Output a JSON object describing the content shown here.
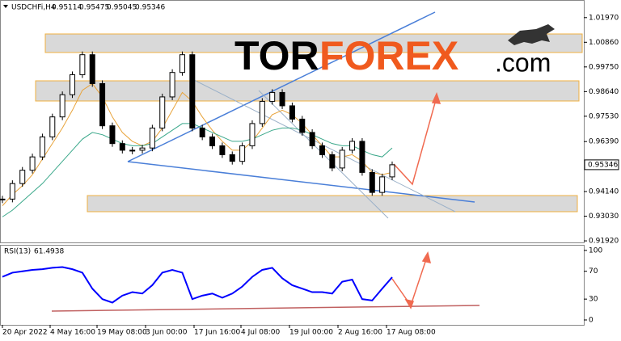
{
  "chart_data": [
    {
      "type": "candlestick",
      "symbol": "USDCHFi,H4",
      "ohlc": [
        0.95114,
        0.95475,
        0.95045,
        0.95346
      ],
      "ylim": [
        0.9185,
        1.0269
      ],
      "yticks": [
        {
          "value": 1.0197,
          "label": "1.01970"
        },
        {
          "value": 1.0086,
          "label": "1.00860"
        },
        {
          "value": 0.9975,
          "label": "0.99750"
        },
        {
          "value": 0.9864,
          "label": "0.98640"
        },
        {
          "value": 0.9753,
          "label": "0.97530"
        },
        {
          "value": 0.9639,
          "label": "0.96390"
        },
        {
          "value": 0.9414,
          "label": "0.94140"
        },
        {
          "value": 0.9303,
          "label": "0.93030"
        },
        {
          "value": 0.9192,
          "label": "0.91920"
        }
      ],
      "series": [
        {
          "color": "#000000",
          "values": [
            0.938,
            0.945,
            0.951,
            0.957,
            0.966,
            0.975,
            0.985,
            0.994,
            1.003,
            0.99,
            0.971,
            0.963,
            0.96,
            0.96,
            0.961,
            0.97,
            0.984,
            0.995,
            1.003,
            0.97,
            0.966,
            0.962,
            0.958,
            0.955,
            0.962,
            0.972,
            0.982,
            0.986,
            0.98,
            0.974,
            0.968,
            0.962,
            0.958,
            0.952,
            0.96,
            0.964,
            0.95,
            0.941,
            0.948,
            0.95346
          ]
        },
        {
          "color": "#e8a33a",
          "values": [
            0.935,
            0.94,
            0.944,
            0.949,
            0.956,
            0.963,
            0.97,
            0.978,
            0.987,
            0.99,
            0.984,
            0.975,
            0.968,
            0.964,
            0.962,
            0.964,
            0.97,
            0.978,
            0.986,
            0.982,
            0.975,
            0.969,
            0.964,
            0.96,
            0.96,
            0.964,
            0.97,
            0.976,
            0.978,
            0.976,
            0.972,
            0.967,
            0.962,
            0.957,
            0.957,
            0.958,
            0.955,
            0.95,
            0.949,
            0.95
          ]
        },
        {
          "color": "#3aa88a",
          "values": [
            0.93,
            0.933,
            0.937,
            0.941,
            0.945,
            0.95,
            0.955,
            0.96,
            0.965,
            0.968,
            0.967,
            0.965,
            0.963,
            0.962,
            0.962,
            0.963,
            0.966,
            0.969,
            0.972,
            0.972,
            0.97,
            0.968,
            0.966,
            0.964,
            0.964,
            0.965,
            0.967,
            0.969,
            0.97,
            0.97,
            0.969,
            0.967,
            0.965,
            0.963,
            0.962,
            0.962,
            0.96,
            0.958,
            0.957,
            0.961
          ]
        }
      ],
      "watermark": [
        "TOR",
        "FOREX",
        ".com"
      ]
    },
    {
      "type": "line",
      "name": "RSI(13)",
      "ylim": [
        -7,
        108
      ],
      "yticks": [
        100,
        70,
        30,
        0
      ],
      "series": [
        {
          "color": "#0000ff",
          "values": [
            62,
            68,
            70,
            72,
            73,
            75,
            76,
            73,
            68,
            45,
            30,
            25,
            35,
            40,
            38,
            50,
            68,
            72,
            68,
            30,
            35,
            38,
            32,
            38,
            48,
            62,
            72,
            75,
            60,
            50,
            45,
            40,
            40,
            38,
            55,
            58,
            30,
            28,
            45,
            61.4938
          ]
        }
      ],
      "x_labels": [
        "20 Apr 2022",
        "4 May 16:00",
        "19 May 08:00",
        "3 Jun 00:00",
        "17 Jun 16:00",
        "4 Jul 08:00",
        "19 Jul 00:00",
        "2 Aug 16:00",
        "17 Aug 08:00"
      ]
    }
  ]
}
